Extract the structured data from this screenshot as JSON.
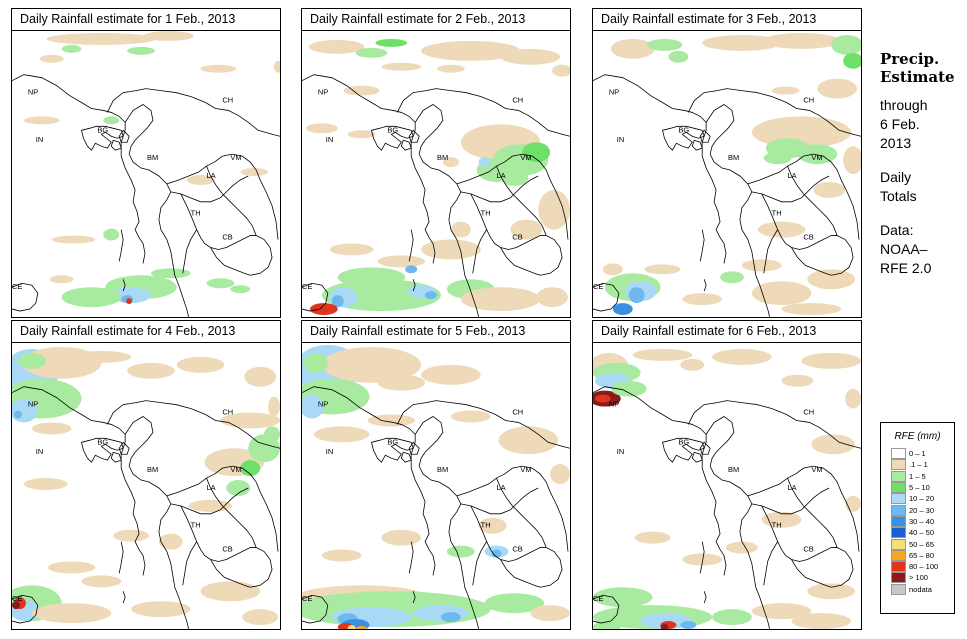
{
  "panels": [
    {
      "title": "Daily Rainfall estimate for  1 Feb., 2013"
    },
    {
      "title": "Daily Rainfall estimate for  2 Feb., 2013"
    },
    {
      "title": "Daily Rainfall estimate for  3 Feb., 2013"
    },
    {
      "title": "Daily Rainfall estimate for  4 Feb., 2013"
    },
    {
      "title": "Daily Rainfall estimate for  5 Feb., 2013"
    },
    {
      "title": "Daily Rainfall estimate for  6 Feb., 2013"
    }
  ],
  "country_labels": [
    "NP",
    "CH",
    "IN",
    "BG",
    "BM",
    "VM",
    "LA",
    "TH",
    "CB",
    "CE"
  ],
  "side": {
    "heading1": "Precip.",
    "heading2": "Estimate",
    "through": "through",
    "date1": "6 Feb.",
    "date2": "2013",
    "totals1": "Daily",
    "totals2": "Totals",
    "data1": "Data:",
    "data2": "NOAA–",
    "data3": "RFE 2.0"
  },
  "legend": {
    "title": "RFE (mm)",
    "items": [
      {
        "label": "0 – 1",
        "color": "#ffffff"
      },
      {
        "label": ".1 – 1",
        "color": "#eed9b8"
      },
      {
        "label": "1 – 5",
        "color": "#a8eba0"
      },
      {
        "label": "5 – 10",
        "color": "#6ee06a"
      },
      {
        "label": "10 – 20",
        "color": "#a9d9f5"
      },
      {
        "label": "20 – 30",
        "color": "#6cb8ef"
      },
      {
        "label": "30 – 40",
        "color": "#3a8fe0"
      },
      {
        "label": "40 – 50",
        "color": "#1a5fd0"
      },
      {
        "label": "50 – 65",
        "color": "#f4e07a"
      },
      {
        "label": "65 – 80",
        "color": "#f5a623"
      },
      {
        "label": "80 – 100",
        "color": "#e0341c"
      },
      {
        "label": "> 100",
        "color": "#8b1a1a"
      },
      {
        "label": "nodata",
        "color": "#c8c8c8"
      }
    ]
  }
}
